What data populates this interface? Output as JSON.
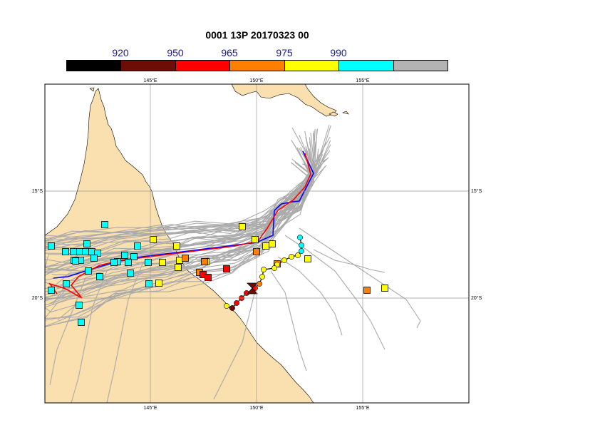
{
  "title": "0001 13P 20170323 00",
  "colorbar": {
    "labels": [
      "920",
      "950",
      "965",
      "975",
      "990"
    ],
    "colors": [
      "#000000",
      "#6e0d06",
      "#ff0000",
      "#ff8000",
      "#ffff00",
      "#00ffff",
      "#b3b3b3"
    ]
  },
  "axes": {
    "lon_ticks": [
      "145°E",
      "150°E",
      "155°E"
    ],
    "lat_ticks": [
      "15°S",
      "20°S"
    ]
  },
  "colors": {
    "land": "#fadfaf",
    "ensemble_track": "#aaaaaa",
    "track_blue": "#0000ff",
    "track_red": "#ff0000",
    "grid": "#9a9a9a"
  }
}
